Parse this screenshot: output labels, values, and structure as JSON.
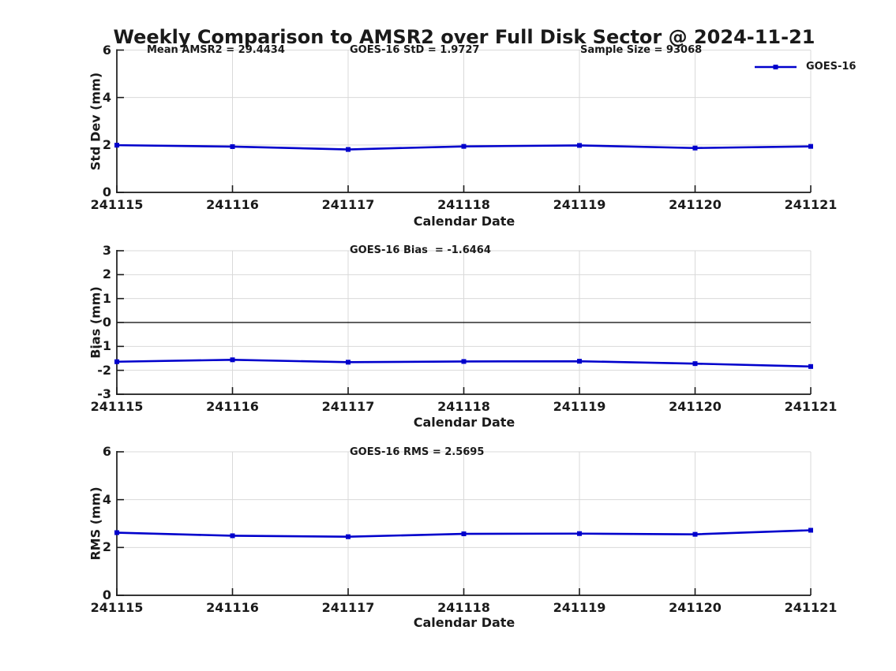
{
  "title": "Weekly Comparison to AMSR2 over Full Disk Sector @ 2024-11-21",
  "legend": {
    "label": "GOES-16",
    "position": "upper right"
  },
  "colors": {
    "line": "#0000CC",
    "grid": "#D9D9D9",
    "axis": "#1A1A1A",
    "zero_line": "#000000",
    "text": "#1A1A1A",
    "background": "#FFFFFF"
  },
  "x_axis": {
    "label": "Calendar Date",
    "ticks": [
      "241115",
      "241116",
      "241117",
      "241118",
      "241119",
      "241120",
      "241121"
    ]
  },
  "chart_data": [
    {
      "type": "line",
      "name": "std-dev-subplot",
      "ylabel": "Std Dev (mm)",
      "xlabel": "Calendar Date",
      "ylim": [
        0,
        6
      ],
      "yticks": [
        0,
        2,
        4,
        6
      ],
      "grid": true,
      "categories": [
        "241115",
        "241116",
        "241117",
        "241118",
        "241119",
        "241120",
        "241121"
      ],
      "series": [
        {
          "name": "GOES-16",
          "values": [
            1.99,
            1.93,
            1.81,
            1.94,
            1.98,
            1.87,
            1.94
          ]
        }
      ],
      "annotations": [
        {
          "text": "Mean AMSR2 = 29.4434"
        },
        {
          "text": "GOES-16 StD = 1.9727"
        },
        {
          "text": "Sample Size = 93068"
        }
      ]
    },
    {
      "type": "line",
      "name": "bias-subplot",
      "ylabel": "Bias (mm)",
      "xlabel": "Calendar Date",
      "ylim": [
        -3,
        3
      ],
      "yticks": [
        -3,
        -2,
        -1,
        0,
        1,
        2,
        3
      ],
      "grid": true,
      "zero_line": true,
      "categories": [
        "241115",
        "241116",
        "241117",
        "241118",
        "241119",
        "241120",
        "241121"
      ],
      "series": [
        {
          "name": "GOES-16",
          "values": [
            -1.64,
            -1.56,
            -1.66,
            -1.63,
            -1.62,
            -1.72,
            -1.84
          ]
        }
      ],
      "annotation": "GOES-16 Bias  = -1.6464"
    },
    {
      "type": "line",
      "name": "rms-subplot",
      "ylabel": "RMS (mm)",
      "xlabel": "Calendar Date",
      "ylim": [
        0,
        6
      ],
      "yticks": [
        0,
        2,
        4,
        6
      ],
      "grid": true,
      "categories": [
        "241115",
        "241116",
        "241117",
        "241118",
        "241119",
        "241120",
        "241121"
      ],
      "series": [
        {
          "name": "GOES-16",
          "values": [
            2.62,
            2.49,
            2.45,
            2.57,
            2.58,
            2.55,
            2.72
          ]
        }
      ],
      "annotation": "GOES-16 RMS = 2.5695"
    }
  ]
}
